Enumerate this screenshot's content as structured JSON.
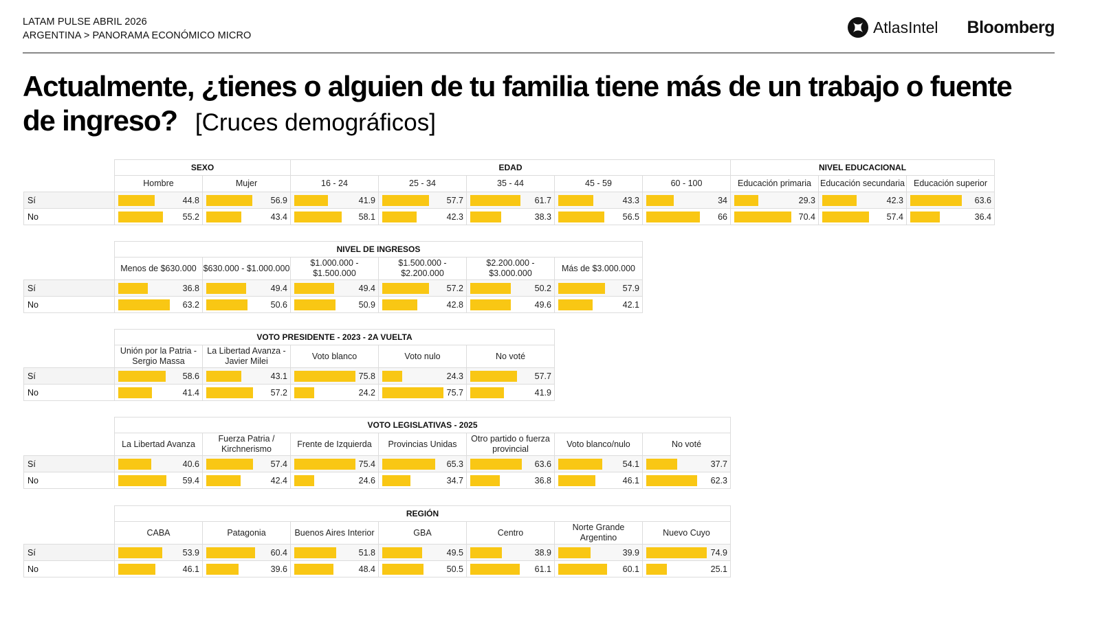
{
  "header": {
    "line1": "LATAM PULSE ABRIL 2026",
    "line2": "ARGENTINA > PANORAMA ECONÓMICO MICRO",
    "logo_atlas": "AtlasIntel",
    "logo_bloomberg": "Bloomberg"
  },
  "title": {
    "main": "Actualmente, ¿tienes o alguien de tu familia tiene más de un trabajo o fuente de ingreso?",
    "sub": "[Cruces demográficos]"
  },
  "colors": {
    "bar": "#f9c714"
  },
  "chart_data": {
    "type": "table",
    "row_labels": [
      "Sí",
      "No"
    ],
    "bar_scale_max": 100,
    "tables": [
      {
        "groups": [
          {
            "label": "SEXO",
            "columns": [
              {
                "label": "Hombre",
                "si": 44.8,
                "no": 55.2
              },
              {
                "label": "Mujer",
                "si": 56.9,
                "no": 43.4
              }
            ]
          },
          {
            "label": "EDAD",
            "columns": [
              {
                "label": "16 - 24",
                "si": 41.9,
                "no": 58.1
              },
              {
                "label": "25 - 34",
                "si": 57.7,
                "no": 42.3
              },
              {
                "label": "35 - 44",
                "si": 61.7,
                "no": 38.3
              },
              {
                "label": "45 - 59",
                "si": 43.3,
                "no": 56.5
              },
              {
                "label": "60 - 100",
                "si": 34,
                "no": 66
              }
            ]
          },
          {
            "label": "NIVEL EDUCACIONAL",
            "columns": [
              {
                "label": "Educación primaria",
                "si": 29.3,
                "no": 70.4
              },
              {
                "label": "Educación secundaria",
                "si": 42.3,
                "no": 57.4
              },
              {
                "label": "Educación superior",
                "si": 63.6,
                "no": 36.4
              }
            ]
          }
        ]
      },
      {
        "groups": [
          {
            "label": "NIVEL DE INGRESOS",
            "columns": [
              {
                "label": "Menos de $630.000",
                "si": 36.8,
                "no": 63.2
              },
              {
                "label": "$630.000 - $1.000.000",
                "si": 49.4,
                "no": 50.6
              },
              {
                "label": "$1.000.000 - $1.500.000",
                "si": 49.4,
                "no": 50.9
              },
              {
                "label": "$1.500.000 - $2.200.000",
                "si": 57.2,
                "no": 42.8
              },
              {
                "label": "$2.200.000 - $3.000.000",
                "si": 50.2,
                "no": 49.6
              },
              {
                "label": "Más de $3.000.000",
                "si": 57.9,
                "no": 42.1
              }
            ]
          }
        ]
      },
      {
        "groups": [
          {
            "label": "VOTO PRESIDENTE - 2023 - 2A VUELTA",
            "columns": [
              {
                "label": "Unión por la Patria - Sergio Massa",
                "si": 58.6,
                "no": 41.4
              },
              {
                "label": "La Libertad Avanza - Javier Milei",
                "si": 43.1,
                "no": 57.2
              },
              {
                "label": "Voto blanco",
                "si": 75.8,
                "no": 24.2
              },
              {
                "label": "Voto nulo",
                "si": 24.3,
                "no": 75.7
              },
              {
                "label": "No voté",
                "si": 57.7,
                "no": 41.9
              }
            ]
          }
        ]
      },
      {
        "groups": [
          {
            "label": "VOTO LEGISLATIVAS - 2025",
            "columns": [
              {
                "label": "La Libertad Avanza",
                "si": 40.6,
                "no": 59.4
              },
              {
                "label": "Fuerza Patria / Kirchnerismo",
                "si": 57.4,
                "no": 42.4
              },
              {
                "label": "Frente de Izquierda",
                "si": 75.4,
                "no": 24.6
              },
              {
                "label": "Provincias Unidas",
                "si": 65.3,
                "no": 34.7
              },
              {
                "label": "Otro partido o fuerza provincial",
                "si": 63.6,
                "no": 36.8
              },
              {
                "label": "Voto blanco/nulo",
                "si": 54.1,
                "no": 46.1
              },
              {
                "label": "No voté",
                "si": 37.7,
                "no": 62.3
              }
            ]
          }
        ]
      },
      {
        "groups": [
          {
            "label": "REGIÓN",
            "columns": [
              {
                "label": "CABA",
                "si": 53.9,
                "no": 46.1
              },
              {
                "label": "Patagonia",
                "si": 60.4,
                "no": 39.6
              },
              {
                "label": "Buenos Aires Interior",
                "si": 51.8,
                "no": 48.4
              },
              {
                "label": "GBA",
                "si": 49.5,
                "no": 50.5
              },
              {
                "label": "Centro",
                "si": 38.9,
                "no": 61.1
              },
              {
                "label": "Norte Grande Argentino",
                "si": 39.9,
                "no": 60.1
              },
              {
                "label": "Nuevo Cuyo",
                "si": 74.9,
                "no": 25.1
              }
            ]
          }
        ]
      }
    ]
  }
}
